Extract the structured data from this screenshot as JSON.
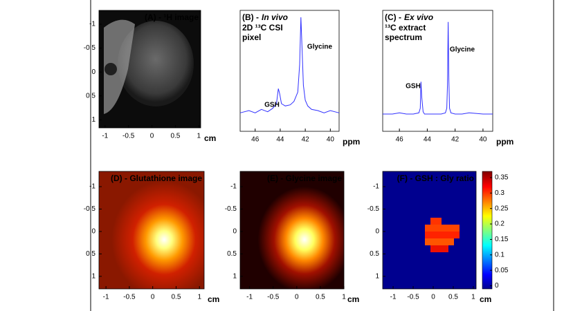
{
  "chart_data": [
    {
      "type": "image",
      "label": "(A) - ¹H image",
      "xlabel": "cm",
      "xlim": [
        -1.13,
        1.04
      ],
      "ylim": [
        -1.29,
        1.17
      ],
      "xticks": [
        -1,
        -0.5,
        0,
        0.5,
        1
      ],
      "yticks": [
        -1,
        -0.5,
        0,
        0.5,
        1
      ]
    },
    {
      "type": "line",
      "label": "(B) -",
      "title": "In vivo",
      "subtitle": [
        "2D ¹³C CSI",
        "pixel"
      ],
      "xlabel": "ppm",
      "xlim": [
        47.2,
        39.3
      ],
      "ylim": [
        0,
        105
      ],
      "xticks": [
        46,
        44,
        42,
        40
      ],
      "color": "#3030ff",
      "annotations": [
        "GSH",
        "Glycine"
      ],
      "x": [
        47.2,
        46.5,
        46,
        45.5,
        45,
        44.6,
        44.3,
        44.15,
        44.05,
        43.9,
        43.6,
        43.2,
        42.9,
        42.6,
        42.45,
        42.35,
        42.25,
        42.15,
        42.0,
        41.8,
        41.5,
        41,
        40.5,
        40,
        39.3
      ],
      "values": [
        16,
        18,
        16,
        19,
        17,
        20,
        24,
        37,
        33,
        24,
        22,
        23,
        26,
        34,
        58,
        99,
        70,
        40,
        27,
        22,
        19,
        18,
        16,
        18,
        16
      ]
    },
    {
      "type": "line",
      "label": "(C) -",
      "title": "Ex vivo",
      "subtitle": [
        "¹³C extract",
        "spectrum"
      ],
      "xlabel": "ppm",
      "xlim": [
        47.2,
        39.3
      ],
      "ylim": [
        0,
        105
      ],
      "xticks": [
        46,
        44,
        42,
        40
      ],
      "color": "#3030ff",
      "annotations": [
        "GSH",
        "Glycine"
      ],
      "x": [
        47.2,
        46.5,
        46,
        45.5,
        45,
        44.6,
        44.5,
        44.45,
        44.4,
        44.3,
        44.2,
        43.5,
        43,
        42.7,
        42.6,
        42.55,
        42.5,
        42.45,
        42.4,
        42.3,
        42,
        41.5,
        41,
        40,
        39.3
      ],
      "values": [
        15,
        15,
        16,
        15,
        15,
        16,
        20,
        43,
        30,
        17,
        15,
        15,
        15,
        16,
        20,
        40,
        95,
        45,
        20,
        16,
        15,
        15,
        16,
        15,
        15
      ]
    },
    {
      "type": "image",
      "label": "(D) - Glutathione image",
      "xlabel": "cm",
      "xlim": [
        -1.15,
        1.1
      ],
      "ylim": [
        -1.34,
        1.28
      ],
      "xticks": [
        -1,
        -0.5,
        0,
        0.5,
        1
      ],
      "yticks": [
        -1,
        -0.5,
        0,
        0.5,
        1
      ]
    },
    {
      "type": "image",
      "label": "(E) - Glycine image",
      "xlabel": "cm",
      "xlim": [
        -1.2,
        1.0
      ],
      "ylim": [
        -1.34,
        1.28
      ],
      "xticks": [
        -1,
        -0.5,
        0,
        0.5,
        1
      ],
      "yticks": [
        -1,
        -0.5,
        0,
        0.5,
        1
      ]
    },
    {
      "type": "image",
      "label": "(F) - GSH : Gly ratio",
      "xlabel": "cm",
      "xlim": [
        -1.26,
        1.07
      ],
      "ylim": [
        -1.34,
        1.28
      ],
      "xticks": [
        -1,
        -0.5,
        0,
        0.5,
        1
      ],
      "yticks": [
        -1,
        -0.5,
        0,
        0.5,
        1
      ],
      "colorbar": {
        "ylim": [
          -0.01,
          0.37
        ],
        "yticks": [
          0,
          0.05,
          0.1,
          0.15,
          0.2,
          0.25,
          0.3,
          0.35
        ]
      }
    }
  ]
}
